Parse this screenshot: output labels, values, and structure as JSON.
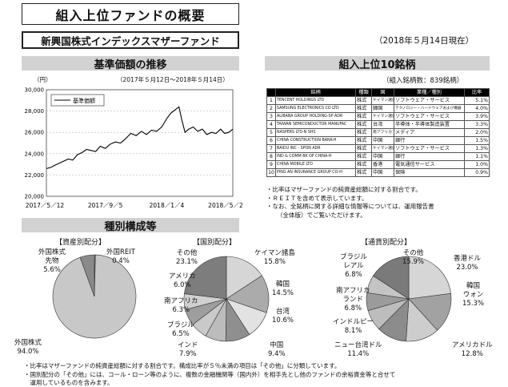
{
  "header": {
    "title": "組入上位ファンドの概要",
    "fund_name": "新興国株式インデックスマザーファンド",
    "as_of": "（2018年５月14日現在）"
  },
  "nav_section": {
    "title": "基準価額の推移",
    "unit": "（円）",
    "period": "（2017年５月12日〜2018年５月14日）",
    "legend": "基準価額",
    "chart_data": {
      "type": "line",
      "title": "",
      "xlabel": "",
      "ylabel": "（円）",
      "ylim": [
        20000,
        30000
      ],
      "yticks": [
        "30,000",
        "28,000",
        "26,000",
        "24,000",
        "22,000",
        "20,000"
      ],
      "xticks": [
        "2017／5／12",
        "2017／9／5",
        "2018／1／4",
        "2018／5／2"
      ],
      "grid": true,
      "series": [
        {
          "name": "基準価額",
          "x": [
            "2017-05-12",
            "2017-05-20",
            "2017-05-28",
            "2017-06-06",
            "2017-06-15",
            "2017-06-24",
            "2017-07-03",
            "2017-07-12",
            "2017-07-21",
            "2017-07-30",
            "2017-08-08",
            "2017-08-17",
            "2017-08-26",
            "2017-09-05",
            "2017-09-15",
            "2017-09-25",
            "2017-10-05",
            "2017-10-15",
            "2017-10-25",
            "2017-11-05",
            "2017-11-15",
            "2017-11-25",
            "2017-12-05",
            "2017-12-15",
            "2017-12-25",
            "2018-01-04",
            "2018-01-12",
            "2018-01-20",
            "2018-01-28",
            "2018-02-03",
            "2018-02-09",
            "2018-02-16",
            "2018-02-25",
            "2018-03-06",
            "2018-03-15",
            "2018-03-24",
            "2018-04-02",
            "2018-04-11",
            "2018-04-20",
            "2018-04-28",
            "2018-05-06",
            "2018-05-14"
          ],
          "values": [
            22600,
            22700,
            22900,
            23100,
            23300,
            23500,
            23400,
            23900,
            24100,
            24400,
            24300,
            24200,
            24700,
            24500,
            24900,
            25100,
            25000,
            25400,
            25900,
            25700,
            26100,
            25800,
            26200,
            26100,
            26500,
            27300,
            27800,
            28100,
            28400,
            27100,
            26000,
            26300,
            26500,
            26100,
            26300,
            25800,
            26000,
            25900,
            26300,
            25900,
            26000,
            26300
          ]
        }
      ]
    }
  },
  "top10": {
    "title": "組入上位10銘柄",
    "count_label": "（組入銘柄数：839銘柄）",
    "headers": [
      "",
      "銘柄",
      "種類",
      "国",
      "業種／種別",
      "比率"
    ],
    "rows": [
      {
        "no": "1",
        "name": "TENCENT HOLDINGS LTD",
        "type": "株式",
        "country": "ケイマン諸島",
        "industry": "ソフトウェア・サービス",
        "pct": "5.1%"
      },
      {
        "no": "2",
        "name": "SAMSUNG ELECTRONICS CO LTD",
        "type": "株式",
        "country": "韓国",
        "industry": "テクノロジー・ハードウェアおよび機器",
        "pct": "4.0%"
      },
      {
        "no": "3",
        "name": "ALIBABA GROUP HOLDING-SP ADR",
        "type": "株式",
        "country": "ケイマン諸島",
        "industry": "ソフトウェア・サービス",
        "pct": "3.9%"
      },
      {
        "no": "4",
        "name": "TAIWAN SEMICONDUCTOR MANUFAC",
        "type": "株式",
        "country": "台湾",
        "industry": "半導体・半導体製造装置",
        "pct": "3.3%"
      },
      {
        "no": "5",
        "name": "NASPERS LTD-N SHS",
        "type": "株式",
        "country": "南アフリカ",
        "industry": "メディア",
        "pct": "2.0%"
      },
      {
        "no": "6",
        "name": "CHINA CONSTRUCTION BANK-H",
        "type": "株式",
        "country": "中国",
        "industry": "銀行",
        "pct": "1.5%"
      },
      {
        "no": "7",
        "name": "BAIDU INC - SPON ADR",
        "type": "株式",
        "country": "ケイマン諸島",
        "industry": "ソフトウェア・サービス",
        "pct": "1.3%"
      },
      {
        "no": "8",
        "name": "IND & COMM BK OF CHINA-H",
        "type": "株式",
        "country": "中国",
        "industry": "銀行",
        "pct": "1.1%"
      },
      {
        "no": "9",
        "name": "CHINA MOBILE LTD",
        "type": "株式",
        "country": "香港",
        "industry": "電気通信サービス",
        "pct": "1.0%"
      },
      {
        "no": "10",
        "name": "PING AN INSURANCE GROUP CO-H",
        "type": "株式",
        "country": "中国",
        "industry": "保険",
        "pct": "0.9%"
      }
    ],
    "notes": [
      "・比率はマザーファンドの純資産総額に対する割合です。",
      "・ＲＥＩＴを含めて表示しています。",
      "・なお、全銘柄に関する詳細な情報等については、運用報告書",
      "（全体版）でご覧いただけます。"
    ]
  },
  "composition": {
    "title": "種別構成等",
    "asset": {
      "title": "【資産別配分】",
      "chart_data": {
        "type": "pie",
        "labels": [
          "外国株式",
          "外国株式先物",
          "外国REIT"
        ],
        "values": [
          94.0,
          5.6,
          0.4
        ]
      },
      "labels": [
        {
          "l1": "外国株式",
          "l2": "先物",
          "v": "5.6%"
        },
        {
          "l1": "外国REIT",
          "v": "0.4%"
        },
        {
          "l1": "外国株式",
          "v": "94.0%"
        }
      ]
    },
    "country": {
      "title": "【国別配分】",
      "chart_data": {
        "type": "pie",
        "labels": [
          "ケイマン諸島",
          "韓国",
          "台湾",
          "中国",
          "インド",
          "ブラジル",
          "南アフリカ",
          "アメリカ",
          "その他"
        ],
        "values": [
          15.8,
          14.5,
          10.6,
          9.4,
          7.9,
          6.5,
          6.3,
          6.0,
          23.1
        ]
      },
      "labels": [
        {
          "l1": "その他",
          "v": "23.1%"
        },
        {
          "l1": "ケイマン諸島",
          "v": "15.8%"
        },
        {
          "l1": "アメリカ",
          "v": "6.0%"
        },
        {
          "l1": "韓国",
          "v": "14.5%"
        },
        {
          "l1": "南アフリカ",
          "v": "6.3%"
        },
        {
          "l1": "台湾",
          "v": "10.6%"
        },
        {
          "l1": "ブラジル",
          "v": "6.5%"
        },
        {
          "l1": "インド",
          "v": "7.9%"
        },
        {
          "l1": "中国",
          "v": "9.4%"
        }
      ]
    },
    "currency": {
      "title": "【通貨別配分】",
      "chart_data": {
        "type": "pie",
        "labels": [
          "香港ドル",
          "韓国ウォン",
          "アメリカドル",
          "ニュー台湾ドル",
          "インドルピー",
          "南アフリカランド",
          "ブラジルレアル",
          "その他"
        ],
        "values": [
          23.0,
          15.3,
          12.8,
          11.4,
          8.1,
          6.8,
          6.8,
          15.9
        ]
      },
      "labels": [
        {
          "l1": "ブラジル",
          "l2": "レアル",
          "v": "6.8%"
        },
        {
          "l1": "その他",
          "v": "15.9%"
        },
        {
          "l1": "香港ドル",
          "v": "23.0%"
        },
        {
          "l1": "南アフリカ",
          "l2": "ランド",
          "v": "6.8%"
        },
        {
          "l1": "韓国",
          "l2": "ウォン",
          "v": "15.3%"
        },
        {
          "l1": "インドルピー",
          "v": "8.1%"
        },
        {
          "l1": "ニュー台湾ドル",
          "v": "11.4%"
        },
        {
          "l1": "アメリカドル",
          "v": "12.8%"
        }
      ]
    },
    "notes": [
      "・比率はマザーファンドの純資産総額に対する割合です。構成比率が５％未満の項目は「その他」に分類しています。",
      "・国別配分の「その他」には、コール・ローン等のように、複数の金融機関等（国内外）を相手先とし他のファンドの余裕資金等と合せて",
      "　運用しているものを含みます。"
    ]
  }
}
